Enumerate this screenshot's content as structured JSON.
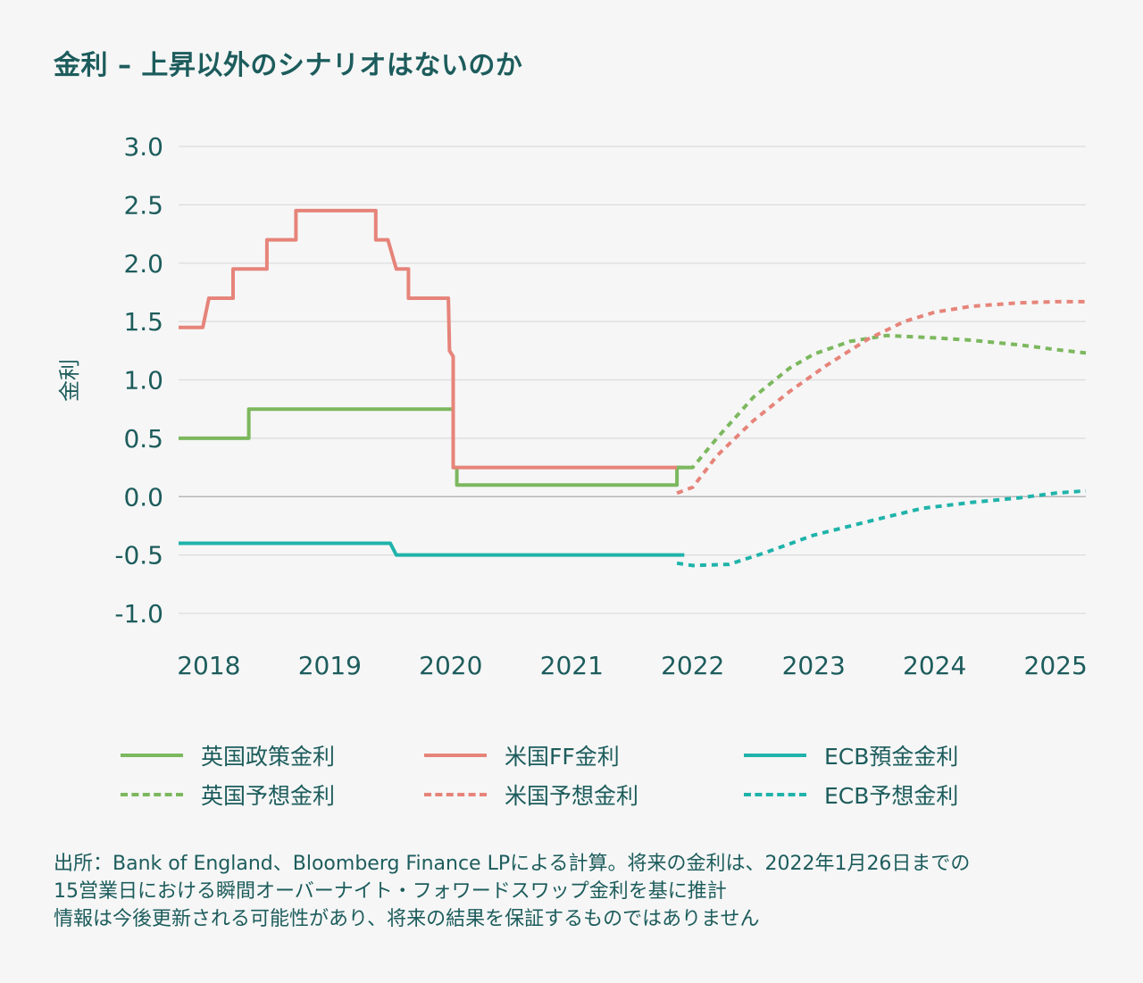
{
  "title": "金利 – 上昇以外のシナリオはないのか",
  "chart_data": {
    "type": "line",
    "title": "金利 – 上昇以外のシナリオはないのか",
    "ylabel": "金利",
    "xlabel": "",
    "ylim": [
      -1.0,
      3.0
    ],
    "xlim": [
      2017.75,
      2025.25
    ],
    "y_ticks": [
      "3.0",
      "2.5",
      "2.0",
      "1.5",
      "1.0",
      "0.5",
      "0.0",
      "-0.5",
      "-1.0"
    ],
    "x_ticks": [
      "2018",
      "2019",
      "2020",
      "2021",
      "2022",
      "2023",
      "2024",
      "2025"
    ],
    "grid": true,
    "legend_position": "bottom",
    "series": [
      {
        "name": "英国政策金利",
        "color": "#7cb85e",
        "dash": "solid",
        "points": [
          [
            2017.75,
            0.5
          ],
          [
            2018.33,
            0.5
          ],
          [
            2018.33,
            0.75
          ],
          [
            2020.02,
            0.75
          ],
          [
            2020.02,
            0.25
          ],
          [
            2020.05,
            0.25
          ],
          [
            2020.05,
            0.1
          ],
          [
            2021.87,
            0.1
          ],
          [
            2021.87,
            0.25
          ],
          [
            2021.97,
            0.25
          ]
        ]
      },
      {
        "name": "米国FF金利",
        "color": "#e6847a",
        "dash": "solid",
        "points": [
          [
            2017.75,
            1.45
          ],
          [
            2017.95,
            1.45
          ],
          [
            2018.0,
            1.7
          ],
          [
            2018.2,
            1.7
          ],
          [
            2018.2,
            1.95
          ],
          [
            2018.48,
            1.95
          ],
          [
            2018.48,
            2.2
          ],
          [
            2018.72,
            2.2
          ],
          [
            2018.72,
            2.45
          ],
          [
            2019.38,
            2.45
          ],
          [
            2019.38,
            2.2
          ],
          [
            2019.48,
            2.2
          ],
          [
            2019.55,
            1.95
          ],
          [
            2019.65,
            1.95
          ],
          [
            2019.65,
            1.7
          ],
          [
            2019.98,
            1.7
          ],
          [
            2019.99,
            1.25
          ],
          [
            2020.02,
            1.2
          ],
          [
            2020.02,
            0.25
          ],
          [
            2021.87,
            0.25
          ]
        ]
      },
      {
        "name": "ECB預金金利",
        "color": "#1fb3aa",
        "dash": "solid",
        "points": [
          [
            2017.75,
            -0.4
          ],
          [
            2019.5,
            -0.4
          ],
          [
            2019.55,
            -0.5
          ],
          [
            2021.93,
            -0.5
          ]
        ]
      },
      {
        "name": "英国予想金利",
        "color": "#7cb85e",
        "dash": "dashed",
        "points": [
          [
            2021.87,
            0.25
          ],
          [
            2022.0,
            0.25
          ],
          [
            2022.2,
            0.5
          ],
          [
            2022.5,
            0.85
          ],
          [
            2022.8,
            1.1
          ],
          [
            2023.0,
            1.22
          ],
          [
            2023.3,
            1.33
          ],
          [
            2023.6,
            1.38
          ],
          [
            2024.0,
            1.36
          ],
          [
            2024.3,
            1.34
          ],
          [
            2024.7,
            1.3
          ],
          [
            2025.0,
            1.26
          ],
          [
            2025.25,
            1.23
          ]
        ]
      },
      {
        "name": "米国予想金利",
        "color": "#e6847a",
        "dash": "dashed",
        "points": [
          [
            2021.87,
            0.03
          ],
          [
            2022.0,
            0.08
          ],
          [
            2022.2,
            0.35
          ],
          [
            2022.5,
            0.65
          ],
          [
            2022.8,
            0.9
          ],
          [
            2023.1,
            1.12
          ],
          [
            2023.45,
            1.35
          ],
          [
            2023.75,
            1.5
          ],
          [
            2024.0,
            1.58
          ],
          [
            2024.3,
            1.63
          ],
          [
            2024.7,
            1.66
          ],
          [
            2025.0,
            1.67
          ],
          [
            2025.25,
            1.67
          ]
        ]
      },
      {
        "name": "ECB予想金利",
        "color": "#1fb3aa",
        "dash": "dashed",
        "points": [
          [
            2021.87,
            -0.57
          ],
          [
            2022.0,
            -0.59
          ],
          [
            2022.3,
            -0.58
          ],
          [
            2022.6,
            -0.48
          ],
          [
            2023.0,
            -0.33
          ],
          [
            2023.5,
            -0.2
          ],
          [
            2023.9,
            -0.1
          ],
          [
            2024.3,
            -0.05
          ],
          [
            2024.7,
            -0.01
          ],
          [
            2025.0,
            0.03
          ],
          [
            2025.25,
            0.05
          ]
        ]
      }
    ]
  },
  "legend": [
    {
      "label": "英国政策金利",
      "color": "#7cb85e",
      "dash": "solid"
    },
    {
      "label": "米国FF金利",
      "color": "#e6847a",
      "dash": "solid"
    },
    {
      "label": "ECB預金金利",
      "color": "#1fb3aa",
      "dash": "solid"
    },
    {
      "label": "英国予想金利",
      "color": "#7cb85e",
      "dash": "dashed"
    },
    {
      "label": "米国予想金利",
      "color": "#e6847a",
      "dash": "dashed"
    },
    {
      "label": "ECB予想金利",
      "color": "#1fb3aa",
      "dash": "dashed"
    }
  ],
  "source_lines": [
    "出所：Bank of England、Bloomberg Finance LPによる計算。将来の金利は、2022年1月26日までの",
    "15営業日における瞬間オーバーナイト・フォワードスワップ金利を基に推計",
    "情報は今後更新される可能性があり、将来の結果を保証するものではありません"
  ]
}
